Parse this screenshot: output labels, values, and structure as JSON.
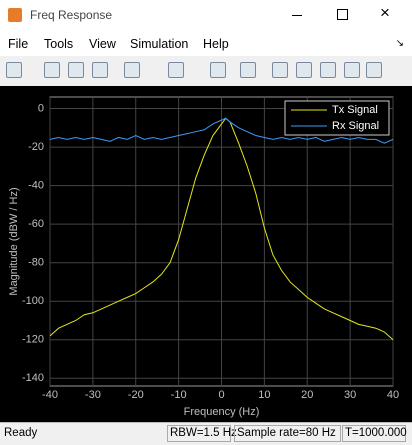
{
  "window": {
    "title": "Freq Response",
    "menu": [
      "File",
      "Tools",
      "View",
      "Simulation",
      "Help"
    ],
    "status": [
      "Ready",
      "RBW=1.5 Hz",
      "Sample rate=80 Hz",
      "T=1000.000"
    ]
  },
  "chart_data": {
    "type": "line",
    "xlabel": "Frequency (Hz)",
    "ylabel": "Magnitude (dBW / Hz)",
    "x": [
      -40,
      -38,
      -36,
      -34,
      -32,
      -30,
      -28,
      -26,
      -24,
      -22,
      -20,
      -18,
      -16,
      -14,
      -12,
      -10,
      -8,
      -6,
      -4,
      -2,
      0,
      1,
      2,
      4,
      6,
      8,
      10,
      12,
      14,
      16,
      18,
      20,
      22,
      24,
      26,
      28,
      30,
      32,
      34,
      36,
      38,
      40
    ],
    "series": [
      {
        "name": "Tx Signal",
        "color": "#e6e619",
        "values": [
          -118,
          -114,
          -112,
          -110,
          -107,
          -106,
          -104,
          -102,
          -100,
          -98,
          -96,
          -93,
          -90,
          -86,
          -80,
          -68,
          -52,
          -36,
          -24,
          -14,
          -8,
          -5,
          -7,
          -18,
          -30,
          -44,
          -62,
          -76,
          -84,
          -90,
          -94,
          -98,
          -101,
          -104,
          -106,
          -108,
          -110,
          -112,
          -113,
          -114,
          -116,
          -120
        ]
      },
      {
        "name": "Rx Signal",
        "color": "#3d9bf5",
        "values": [
          -16,
          -15,
          -16,
          -15,
          -16,
          -15,
          -16,
          -17,
          -15,
          -16,
          -14,
          -16,
          -15,
          -16,
          -15,
          -14,
          -13,
          -12,
          -11,
          -8,
          -6,
          -5,
          -7,
          -10,
          -12,
          -14,
          -15,
          -16,
          -15,
          -16,
          -15,
          -16,
          -15,
          -17,
          -16,
          -15,
          -16,
          -15,
          -16,
          -16,
          -18,
          -16
        ]
      }
    ],
    "xlim": [
      -40,
      40
    ],
    "ylim": [
      -144,
      6
    ],
    "xticks": [
      -40,
      -30,
      -20,
      -10,
      0,
      10,
      20,
      30,
      40
    ],
    "yticks": [
      0,
      -20,
      -40,
      -60,
      -80,
      -100,
      -120,
      -140
    ],
    "grid": true,
    "legend": "upper right"
  }
}
